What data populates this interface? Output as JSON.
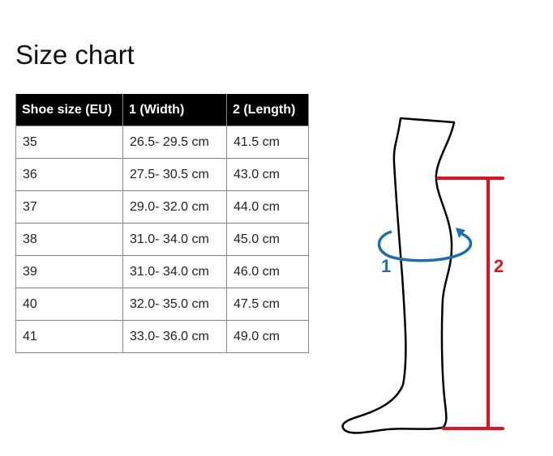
{
  "title": "Size chart",
  "table": {
    "headers": [
      "Shoe size (EU)",
      "1 (Width)",
      "2 (Length)"
    ],
    "rows": [
      [
        "35",
        "26.5- 29.5 cm",
        "41.5 cm"
      ],
      [
        "36",
        "27.5- 30.5 cm",
        "43.0 cm"
      ],
      [
        "37",
        "29.0- 32.0 cm",
        "44.0 cm"
      ],
      [
        "38",
        "31.0- 34.0 cm",
        "45.0 cm"
      ],
      [
        "39",
        "31.0- 34.0 cm",
        "46.0 cm"
      ],
      [
        "40",
        "32.0- 35.0 cm",
        "47.5 cm"
      ],
      [
        "41",
        "33.0- 36.0 cm",
        "49.0 cm"
      ]
    ]
  },
  "diagram": {
    "width_label": "1",
    "length_label": "2",
    "colors": {
      "width": "#1f6fb0",
      "length": "#e3101d",
      "outline": "#000000"
    }
  }
}
